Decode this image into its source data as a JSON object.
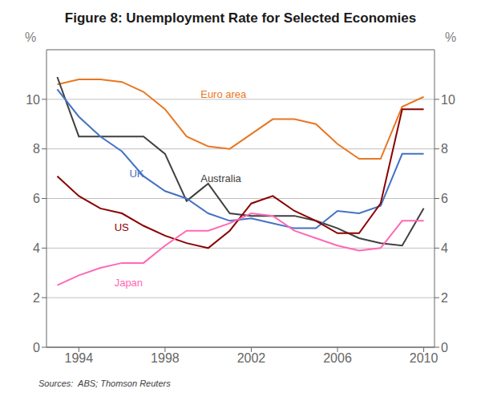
{
  "chart_data": {
    "type": "line",
    "title": "Figure 8: Unemployment Rate for Selected Economies",
    "source": "Sources:  ABS; Thomson Reuters",
    "y_label": "%",
    "y2_label": "%",
    "xlim": [
      1992.5,
      2010.5
    ],
    "xticks": [
      1994,
      1998,
      2002,
      2006,
      2010
    ],
    "ylim": [
      0,
      12
    ],
    "yticks": [
      0,
      2,
      4,
      6,
      8,
      10
    ],
    "y2lim": [
      0,
      12
    ],
    "y2ticks": [
      0,
      2,
      4,
      6,
      8,
      10
    ],
    "grid": true,
    "x": [
      1993,
      1994,
      1995,
      1996,
      1997,
      1998,
      1999,
      2000,
      2001,
      2002,
      2003,
      2004,
      2005,
      2006,
      2007,
      2008,
      2009,
      2010
    ],
    "series": [
      {
        "name": "Euro area",
        "color": "#E87722",
        "values": [
          10.6,
          10.8,
          10.8,
          10.7,
          10.3,
          9.6,
          8.5,
          8.1,
          8.0,
          8.6,
          9.2,
          9.2,
          9.0,
          8.2,
          7.6,
          7.6,
          9.7,
          10.1
        ]
      },
      {
        "name": "Australia",
        "color": "#404040",
        "values": [
          10.9,
          8.5,
          8.5,
          8.5,
          8.5,
          7.8,
          5.9,
          6.6,
          5.4,
          5.3,
          5.3,
          5.3,
          5.1,
          4.8,
          4.4,
          4.2,
          4.1,
          5.6
        ]
      },
      {
        "name": "UK",
        "color": "#4472C4",
        "values": [
          10.4,
          9.3,
          8.5,
          7.9,
          6.9,
          6.3,
          6.0,
          5.4,
          5.1,
          5.2,
          5.0,
          4.8,
          4.8,
          5.5,
          5.4,
          5.7,
          7.8,
          7.8
        ]
      },
      {
        "name": "US",
        "color": "#8B0000",
        "values": [
          6.9,
          6.1,
          5.6,
          5.4,
          4.9,
          4.5,
          4.2,
          4.0,
          4.7,
          5.8,
          6.1,
          5.5,
          5.1,
          4.6,
          4.6,
          5.8,
          9.6,
          9.6
        ]
      },
      {
        "name": "Japan",
        "color": "#FF69B4",
        "values": [
          2.5,
          2.9,
          3.2,
          3.4,
          3.4,
          4.1,
          4.7,
          4.7,
          5.0,
          5.4,
          5.3,
          4.7,
          4.4,
          4.1,
          3.9,
          4.0,
          5.1,
          5.1
        ]
      }
    ],
    "annotations": [
      {
        "text": "Euro area",
        "x": 1999.5,
        "y": 10.2,
        "color": "#E87722"
      },
      {
        "text": "Australia",
        "x": 1999.5,
        "y": 6.8,
        "color": "#404040"
      },
      {
        "text": "UK",
        "x": 1996.2,
        "y": 7.0,
        "color": "#4472C4"
      },
      {
        "text": "US",
        "x": 1995.5,
        "y": 4.85,
        "color": "#8B0000"
      },
      {
        "text": "Japan",
        "x": 1995.5,
        "y": 2.6,
        "color": "#FF69B4"
      }
    ]
  }
}
